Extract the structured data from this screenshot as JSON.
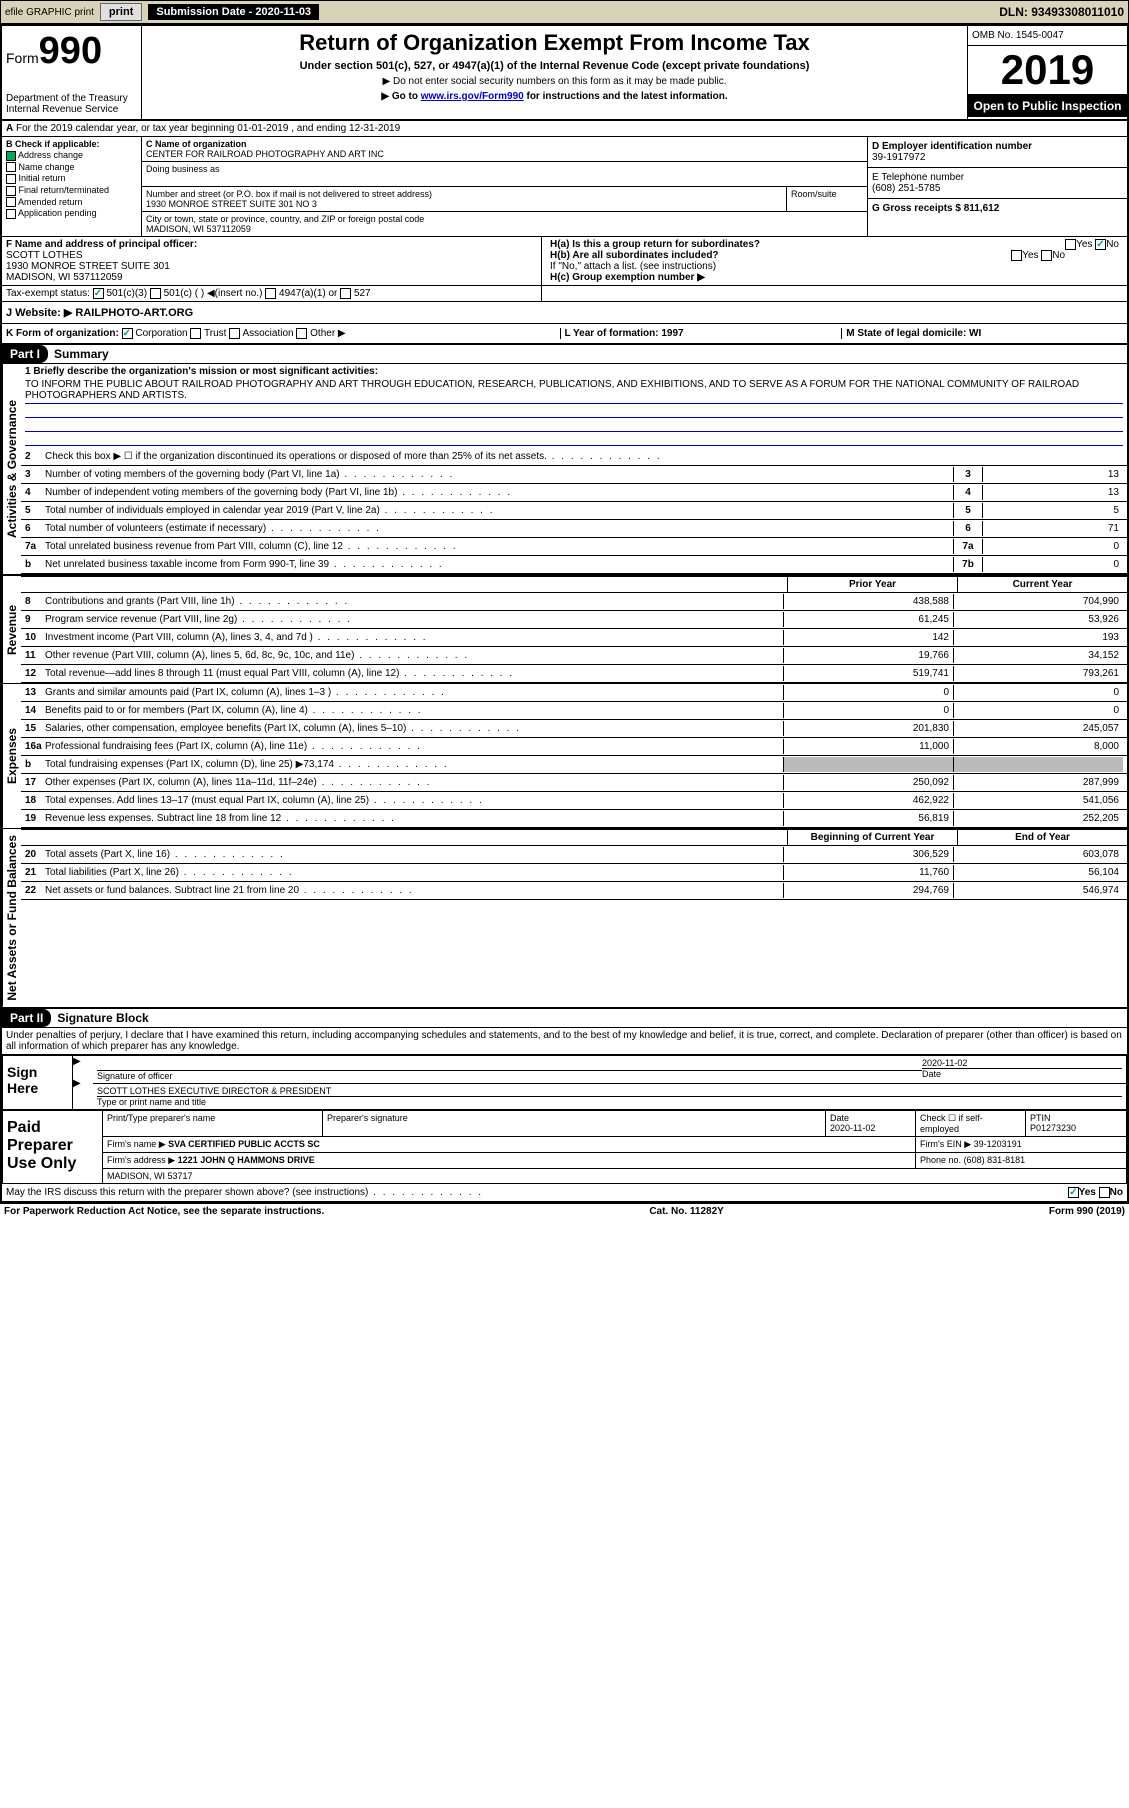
{
  "topbar": {
    "efile": "efile GRAPHIC print",
    "sub_label": "Submission Date - 2020-11-03",
    "dln": "DLN: 93493308011010"
  },
  "header": {
    "form_label": "Form",
    "form_num": "990",
    "dept": "Department of the Treasury Internal Revenue Service",
    "title": "Return of Organization Exempt From Income Tax",
    "sub1": "Under section 501(c), 527, or 4947(a)(1) of the Internal Revenue Code (except private foundations)",
    "sub2": "▶ Do not enter social security numbers on this form as it may be made public.",
    "sub3_pre": "▶ Go to ",
    "sub3_link": "www.irs.gov/Form990",
    "sub3_post": " for instructions and the latest information.",
    "omb": "OMB No. 1545-0047",
    "year": "2019",
    "inspect": "Open to Public Inspection"
  },
  "period": "For the 2019 calendar year, or tax year beginning 01-01-2019   , and ending 12-31-2019",
  "section_b": {
    "hdr": "B Check if applicable:",
    "addr_change": "Address change",
    "name_change": "Name change",
    "initial": "Initial return",
    "final": "Final return/terminated",
    "amended": "Amended return",
    "app": "Application pending"
  },
  "section_c": {
    "name_hdr": "C Name of organization",
    "name_val": "CENTER FOR RAILROAD PHOTOGRAPHY AND ART INC",
    "dba_hdr": "Doing business as",
    "addr_hdr": "Number and street (or P.O. box if mail is not delivered to street address)",
    "room_hdr": "Room/suite",
    "addr_val": "1930 MONROE STREET SUITE 301 NO 3",
    "city_hdr": "City or town, state or province, country, and ZIP or foreign postal code",
    "city_val": "MADISON, WI  537112059"
  },
  "section_d": {
    "hdr": "D Employer identification number",
    "val": "39-1917972"
  },
  "section_e": {
    "hdr": "E Telephone number",
    "val": "(608) 251-5785"
  },
  "section_g": {
    "hdr": "G Gross receipts $ 811,612"
  },
  "section_f": {
    "hdr": "F  Name and address of principal officer:",
    "name": "SCOTT LOTHES",
    "addr": "1930 MONROE STREET SUITE 301",
    "city": "MADISON, WI  537112059"
  },
  "section_h": {
    "ha": "H(a)  Is this a group return for subordinates?",
    "hb": "H(b)  Are all subordinates included?",
    "hb_note": "If \"No,\" attach a list. (see instructions)",
    "hc": "H(c)  Group exemption number ▶",
    "yes": "Yes",
    "no": "No"
  },
  "tax_exempt": {
    "label": "Tax-exempt status:",
    "o1": "501(c)(3)",
    "o2": "501(c) (  ) ◀(insert no.)",
    "o3": "4947(a)(1) or",
    "o4": "527"
  },
  "website": {
    "label": "J  Website: ▶",
    "val": "RAILPHOTO-ART.ORG"
  },
  "section_k": {
    "label": "K Form of organization:",
    "corp": "Corporation",
    "trust": "Trust",
    "assoc": "Association",
    "other": "Other ▶"
  },
  "section_l": {
    "label": "L Year of formation: 1997"
  },
  "section_m": {
    "label": "M State of legal domicile: WI"
  },
  "parts": {
    "p1": "Part I",
    "p1_title": "Summary",
    "p2": "Part II",
    "p2_title": "Signature Block"
  },
  "vtabs": {
    "ag": "Activities & Governance",
    "rev": "Revenue",
    "exp": "Expenses",
    "na": "Net Assets or Fund Balances"
  },
  "line1": {
    "label": "1  Briefly describe the organization's mission or most significant activities:",
    "text": "TO INFORM THE PUBLIC ABOUT RAILROAD PHOTOGRAPHY AND ART THROUGH EDUCATION, RESEARCH, PUBLICATIONS, AND EXHIBITIONS, AND TO SERVE AS A FORUM FOR THE NATIONAL COMMUNITY OF RAILROAD PHOTOGRAPHERS AND ARTISTS."
  },
  "lines_ag": [
    {
      "n": "2",
      "t": "Check this box ▶ ☐ if the organization discontinued its operations or disposed of more than 25% of its net assets.",
      "box": "",
      "v": ""
    },
    {
      "n": "3",
      "t": "Number of voting members of the governing body (Part VI, line 1a)",
      "box": "3",
      "v": "13"
    },
    {
      "n": "4",
      "t": "Number of independent voting members of the governing body (Part VI, line 1b)",
      "box": "4",
      "v": "13"
    },
    {
      "n": "5",
      "t": "Total number of individuals employed in calendar year 2019 (Part V, line 2a)",
      "box": "5",
      "v": "5"
    },
    {
      "n": "6",
      "t": "Total number of volunteers (estimate if necessary)",
      "box": "6",
      "v": "71"
    },
    {
      "n": "7a",
      "t": "Total unrelated business revenue from Part VIII, column (C), line 12",
      "box": "7a",
      "v": "0"
    },
    {
      "n": "b",
      "t": "Net unrelated business taxable income from Form 990-T, line 39",
      "box": "7b",
      "v": "0"
    }
  ],
  "col_hdrs": {
    "py": "Prior Year",
    "cy": "Current Year",
    "boy": "Beginning of Current Year",
    "eoy": "End of Year"
  },
  "lines_rev": [
    {
      "n": "8",
      "t": "Contributions and grants (Part VIII, line 1h)",
      "py": "438,588",
      "cy": "704,990"
    },
    {
      "n": "9",
      "t": "Program service revenue (Part VIII, line 2g)",
      "py": "61,245",
      "cy": "53,926"
    },
    {
      "n": "10",
      "t": "Investment income (Part VIII, column (A), lines 3, 4, and 7d )",
      "py": "142",
      "cy": "193"
    },
    {
      "n": "11",
      "t": "Other revenue (Part VIII, column (A), lines 5, 6d, 8c, 9c, 10c, and 11e)",
      "py": "19,766",
      "cy": "34,152"
    },
    {
      "n": "12",
      "t": "Total revenue—add lines 8 through 11 (must equal Part VIII, column (A), line 12)",
      "py": "519,741",
      "cy": "793,261"
    }
  ],
  "lines_exp": [
    {
      "n": "13",
      "t": "Grants and similar amounts paid (Part IX, column (A), lines 1–3 )",
      "py": "0",
      "cy": "0"
    },
    {
      "n": "14",
      "t": "Benefits paid to or for members (Part IX, column (A), line 4)",
      "py": "0",
      "cy": "0"
    },
    {
      "n": "15",
      "t": "Salaries, other compensation, employee benefits (Part IX, column (A), lines 5–10)",
      "py": "201,830",
      "cy": "245,057"
    },
    {
      "n": "16a",
      "t": "Professional fundraising fees (Part IX, column (A), line 11e)",
      "py": "11,000",
      "cy": "8,000"
    },
    {
      "n": "b",
      "t": "Total fundraising expenses (Part IX, column (D), line 25) ▶73,174",
      "py": "",
      "cy": "",
      "gray": true
    },
    {
      "n": "17",
      "t": "Other expenses (Part IX, column (A), lines 11a–11d, 11f–24e)",
      "py": "250,092",
      "cy": "287,999"
    },
    {
      "n": "18",
      "t": "Total expenses. Add lines 13–17 (must equal Part IX, column (A), line 25)",
      "py": "462,922",
      "cy": "541,056"
    },
    {
      "n": "19",
      "t": "Revenue less expenses. Subtract line 18 from line 12",
      "py": "56,819",
      "cy": "252,205"
    }
  ],
  "lines_na": [
    {
      "n": "20",
      "t": "Total assets (Part X, line 16)",
      "py": "306,529",
      "cy": "603,078"
    },
    {
      "n": "21",
      "t": "Total liabilities (Part X, line 26)",
      "py": "11,760",
      "cy": "56,104"
    },
    {
      "n": "22",
      "t": "Net assets or fund balances. Subtract line 21 from line 20",
      "py": "294,769",
      "cy": "546,974"
    }
  ],
  "sig_decl": "Under penalties of perjury, I declare that I have examined this return, including accompanying schedules and statements, and to the best of my knowledge and belief, it is true, correct, and complete. Declaration of preparer (other than officer) is based on all information of which preparer has any knowledge.",
  "sign_here": "Sign Here",
  "sig_officer": "Signature of officer",
  "sig_date_hdr": "Date",
  "sig_date": "2020-11-02",
  "sig_name": "SCOTT LOTHES  EXECUTIVE DIRECTOR & PRESIDENT",
  "sig_name_hdr": "Type or print name and title",
  "paid": {
    "title": "Paid Preparer Use Only",
    "h1": "Print/Type preparer's name",
    "h2": "Preparer's signature",
    "h3": "Date",
    "h3v": "2020-11-02",
    "h4": "Check ☐ if self-employed",
    "h5": "PTIN",
    "h5v": "P01273230",
    "firm_name_hdr": "Firm's name ▶",
    "firm_name": "SVA CERTIFIED PUBLIC ACCTS SC",
    "firm_ein_hdr": "Firm's EIN ▶",
    "firm_ein": "39-1203191",
    "firm_addr_hdr": "Firm's address ▶",
    "firm_addr1": "1221 JOHN Q HAMMONS DRIVE",
    "firm_addr2": "MADISON, WI  53717",
    "phone_hdr": "Phone no.",
    "phone": "(608) 831-8181"
  },
  "discuss": "May the IRS discuss this return with the preparer shown above? (see instructions)",
  "footer": {
    "left": "For Paperwork Reduction Act Notice, see the separate instructions.",
    "mid": "Cat. No. 11282Y",
    "right": "Form 990 (2019)"
  }
}
